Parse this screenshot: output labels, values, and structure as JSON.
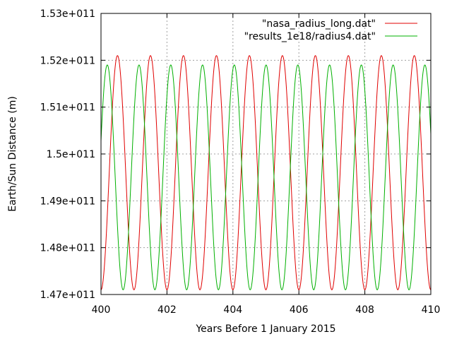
{
  "chart_data": {
    "type": "line",
    "title": "",
    "xlabel": "Years Before 1 January 2015",
    "ylabel": "Earth/Sun Distance (m)",
    "xlim": [
      400,
      410
    ],
    "ylim": [
      147000000000,
      153000000000
    ],
    "x_ticks": [
      400,
      402,
      404,
      406,
      408,
      410
    ],
    "x_tick_labels": [
      "400",
      "402",
      "404",
      "406",
      "408",
      "410"
    ],
    "y_ticks": [
      147000000000,
      148000000000,
      149000000000,
      150000000000,
      151000000000,
      152000000000,
      153000000000
    ],
    "y_tick_labels": [
      "1.47e+011",
      "1.48e+011",
      "1.49e+011",
      "1.5e+011",
      "1.51e+011",
      "1.52e+011",
      "1.53e+011"
    ],
    "grid": true,
    "legend_position": "top-right",
    "series": [
      {
        "name": "\"nasa_radius_long.dat\"",
        "color": "#e00000",
        "model": "sinusoid",
        "min": 147100000000,
        "max": 152100000000,
        "period_years": 1.0,
        "peak_x": 400.5
      },
      {
        "name": "\"results_1e18/radius4.dat\"",
        "color": "#00b000",
        "model": "sinusoid",
        "min": 147100000000,
        "max": 151900000000,
        "period_years": 0.963,
        "peak_x": 400.19
      }
    ]
  }
}
